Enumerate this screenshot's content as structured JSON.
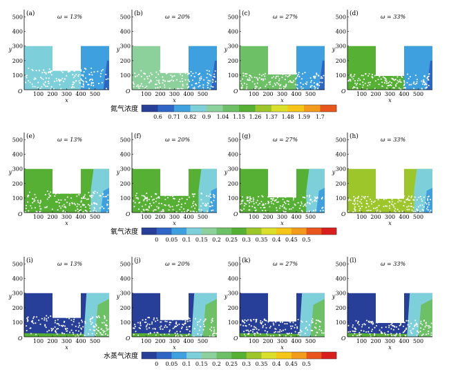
{
  "palette_colors": [
    "#283f99",
    "#2f66c6",
    "#3fa0e0",
    "#7dd0da",
    "#8cd09c",
    "#6ec066",
    "#55b033",
    "#9cc62a",
    "#d9df2a",
    "#f5c518",
    "#f29a1c",
    "#e9561d",
    "#d91e1e"
  ],
  "rows": [
    {
      "species": "nitrogen",
      "colorbar": {
        "title": "氮气浓度",
        "ticks": [
          "0.6",
          "0.71",
          "0.82",
          "0.9",
          "1.04",
          "1.15",
          "1.26",
          "1.37",
          "1.48",
          "1.59",
          "1.7"
        ]
      },
      "panels": [
        {
          "tag": "(a)",
          "omega_label": "ω = 13%"
        },
        {
          "tag": "(b)",
          "omega_label": "ω = 20%"
        },
        {
          "tag": "(c)",
          "omega_label": "ω = 27%"
        },
        {
          "tag": "(d)",
          "omega_label": "ω = 33%"
        }
      ]
    },
    {
      "species": "oxygen",
      "colorbar": {
        "title": "氧气浓度",
        "ticks": [
          "0",
          "0.05",
          "0.1",
          "0.15",
          "0.2",
          "0.25",
          "0.3",
          "0.35",
          "0.4",
          "0.45",
          "0.5"
        ]
      },
      "panels": [
        {
          "tag": "(e)",
          "omega_label": "ω = 13%"
        },
        {
          "tag": "(f)",
          "omega_label": "ω = 20%"
        },
        {
          "tag": "(g)",
          "omega_label": "ω = 27%"
        },
        {
          "tag": "(h)",
          "omega_label": "ω = 33%"
        }
      ]
    },
    {
      "species": "water_vapor",
      "colorbar": {
        "title": "水蒸气浓度",
        "ticks": [
          "0",
          "0.05",
          "0.1",
          "0.15",
          "0.2",
          "0.25",
          "0.3",
          "0.35",
          "0.4",
          "0.45",
          "0.5"
        ]
      },
      "panels": [
        {
          "tag": "(i)",
          "omega_label": "ω = 13%"
        },
        {
          "tag": "(j)",
          "omega_label": "ω = 20%"
        },
        {
          "tag": "(k)",
          "omega_label": "ω = 27%"
        },
        {
          "tag": "(l)",
          "omega_label": "ω = 33%"
        }
      ]
    }
  ],
  "chart_data": {
    "type": "heatmap",
    "xlabel": "x",
    "ylabel": "y",
    "origin_label": "O",
    "xlim": [
      0,
      600
    ],
    "ylim": [
      0,
      550
    ],
    "xticks": [
      100,
      200,
      300,
      400,
      500
    ],
    "yticks": [
      100,
      200,
      300,
      400,
      500
    ],
    "domain": {
      "left_block": {
        "x": [
          0,
          200
        ],
        "y": [
          0,
          300
        ]
      },
      "right_block": {
        "x": [
          400,
          600
        ],
        "y": [
          0,
          300
        ]
      },
      "trench_bottom_y_by_omega": {
        "13%": 130,
        "20%": 115,
        "27%": 105,
        "33%": 95
      }
    },
    "omega": [
      "13%",
      "20%",
      "27%",
      "33%"
    ],
    "species_levels": {
      "nitrogen": {
        "background_level_by_omega": [
          "0.82",
          "0.9",
          "1.04",
          "1.15"
        ],
        "right_side_level": "0.71"
      },
      "oxygen": {
        "background_level_by_omega": [
          "0.3",
          "0.3",
          "0.3",
          "0.35"
        ],
        "right_side_level": "0.15"
      },
      "water_vapor": {
        "background_level": "0",
        "right_side_level": "0.2"
      }
    }
  }
}
